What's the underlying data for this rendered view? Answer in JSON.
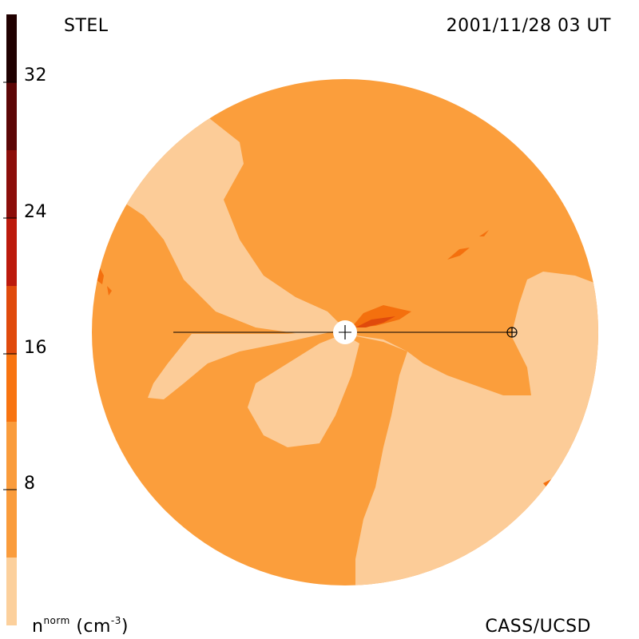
{
  "header": {
    "label_left": "STEL",
    "label_right": "2001/11/28 03 UT"
  },
  "footer": {
    "colorbar_label_base": "n",
    "colorbar_label_sup": "norm",
    "colorbar_label_unit": "(cm",
    "colorbar_label_unit_sup": "-3",
    "colorbar_label_unit_end": ")",
    "credit": "CASS/UCSD"
  },
  "colorbar": {
    "ticks": [
      "8",
      "16",
      "24",
      "32"
    ],
    "colors": [
      "#fcd09c",
      "#fa9c3c",
      "#f87410",
      "#e04a0c",
      "#bc1a0c",
      "#8c0e0a",
      "#5c0606",
      "#3c0404",
      "#200000"
    ]
  },
  "map_colors": {
    "background": "#fb9e3c",
    "low": "#fccc98",
    "mid": "#fa9c3c",
    "high": "#f4700e",
    "higher": "#e04a0c",
    "sun": "#ffffff",
    "line": "#000000"
  }
}
